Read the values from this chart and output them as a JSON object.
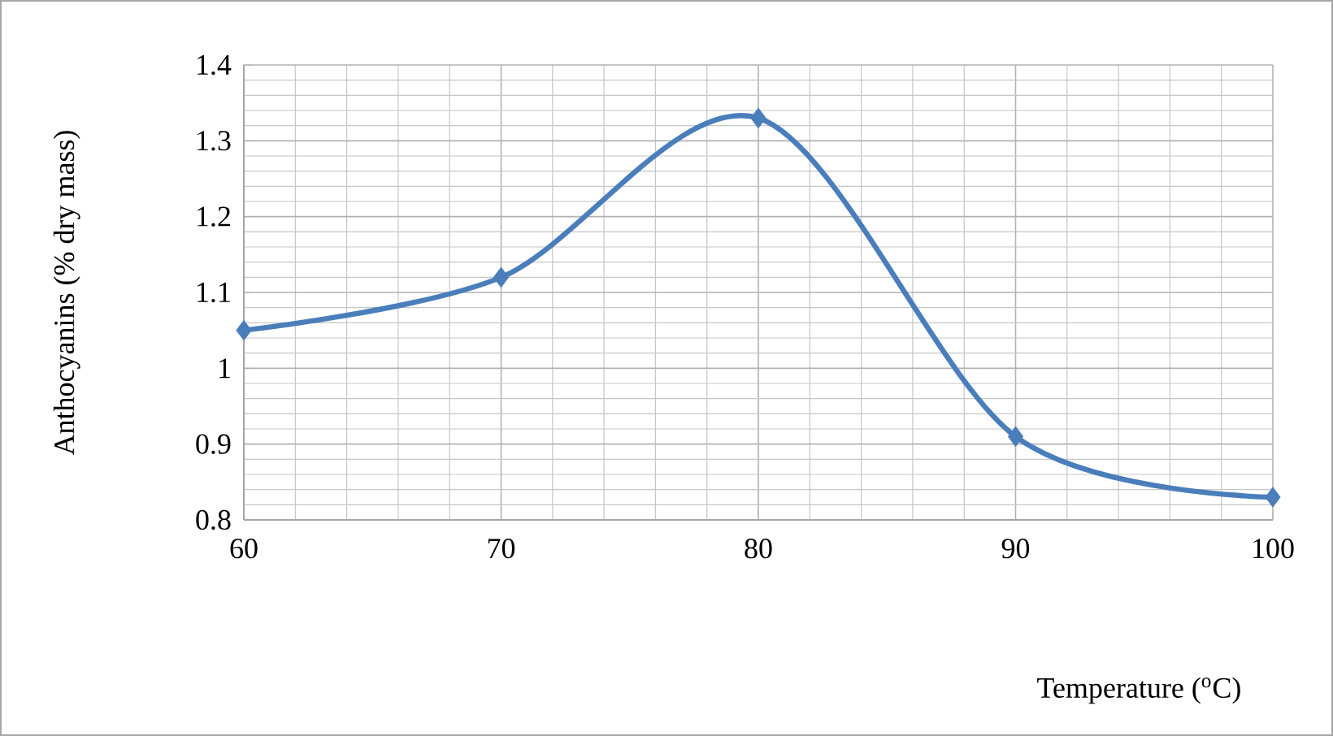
{
  "chart_data": {
    "type": "line",
    "xlabel": "Temperature ($^{o}$C)",
    "ylabel": "Anthocyanins (% dry mass)",
    "x": [
      60,
      70,
      80,
      90,
      100
    ],
    "series": [
      {
        "color": "#4a7ebb",
        "values": [
          1.05,
          1.12,
          1.33,
          0.91,
          0.83
        ]
      }
    ],
    "xlim": [
      60,
      100
    ],
    "xticks": [
      60,
      70,
      80,
      90,
      100
    ],
    "ylim": [
      0.8,
      1.4
    ],
    "yticks": [
      0.8,
      0.9,
      1,
      1.1,
      1.2,
      1.3,
      1.4
    ],
    "grid": true,
    "marker": "diamond",
    "line_style": "solid",
    "legend": false
  }
}
